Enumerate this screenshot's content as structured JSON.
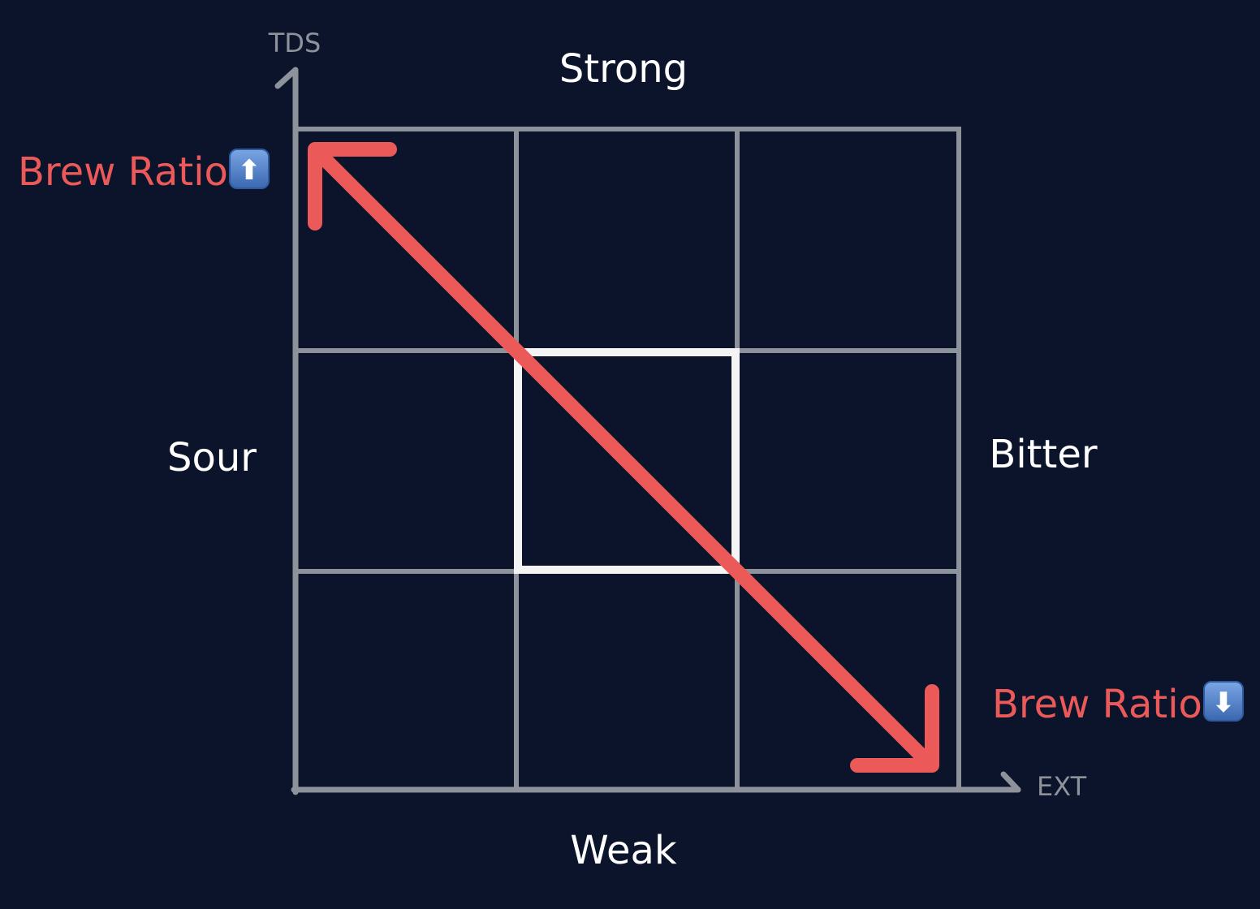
{
  "colors": {
    "background": "#0b142b",
    "grid": "#8e939b",
    "highlight": "#f4f4f4",
    "accent": "#eb5a58",
    "text": "#ffffff",
    "icon_fill": "#4f7cc2"
  },
  "axes": {
    "y_label": "TDS",
    "x_label": "EXT"
  },
  "regions": {
    "top": "Strong",
    "bottom": "Weak",
    "left": "Sour",
    "right": "Bitter"
  },
  "annotations": {
    "top_left": {
      "text": "Brew Ratio",
      "icon": "up-arrow-emoji-icon",
      "glyph": "⬆"
    },
    "bottom_right": {
      "text": "Brew Ratio",
      "icon": "down-arrow-emoji-icon",
      "glyph": "⬇"
    }
  },
  "grid": {
    "rows": 3,
    "cols": 3,
    "highlighted_cell": "center"
  }
}
